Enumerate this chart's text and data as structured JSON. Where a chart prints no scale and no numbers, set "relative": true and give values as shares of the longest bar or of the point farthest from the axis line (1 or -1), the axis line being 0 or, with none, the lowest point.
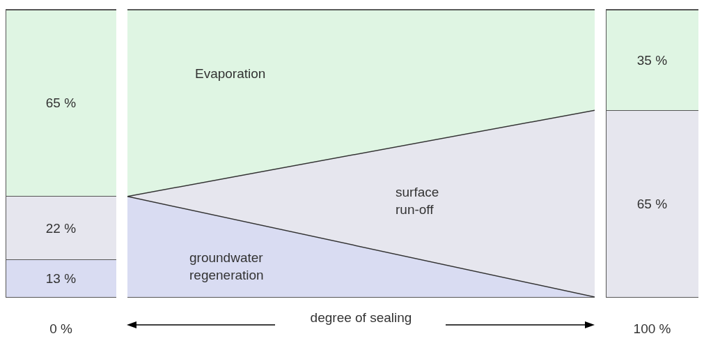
{
  "chart_data": [
    {
      "type": "bar",
      "stacked": true,
      "categories": [
        "0 %"
      ],
      "tick_labels": "x",
      "legend": false,
      "series": [
        {
          "color": "#d9dcf2",
          "values": [
            13
          ],
          "value_labels": [
            "13 %"
          ]
        },
        {
          "color": "#e6e6ee",
          "values": [
            22
          ],
          "value_labels": [
            "22 %"
          ]
        },
        {
          "color": "#dff5e3",
          "values": [
            65
          ],
          "value_labels": [
            "65 %"
          ]
        }
      ]
    },
    {
      "type": "area",
      "relative": true,
      "categories": [
        null,
        null
      ],
      "xlabel": "degree of sealing",
      "tick_labels": false,
      "legend": false,
      "series": [
        {
          "name": "groundwater regeneration",
          "color": "#d9dcf2",
          "values": [
            0.35,
            0
          ]
        },
        {
          "name": "surface run-off",
          "color": "#e6e6ee",
          "values": [
            0.35,
            0.65
          ]
        },
        {
          "name": "Evaporation",
          "color": "#dff5e3",
          "values": [
            1,
            1
          ]
        }
      ]
    },
    {
      "type": "bar",
      "stacked": true,
      "categories": [
        "100 %"
      ],
      "tick_labels": "x",
      "legend": false,
      "series": [
        {
          "color": "#e6e6ee",
          "values": [
            65
          ],
          "value_labels": [
            "65 %"
          ]
        },
        {
          "color": "#dff5e3",
          "values": [
            35
          ],
          "value_labels": [
            "35 %"
          ]
        }
      ]
    }
  ]
}
